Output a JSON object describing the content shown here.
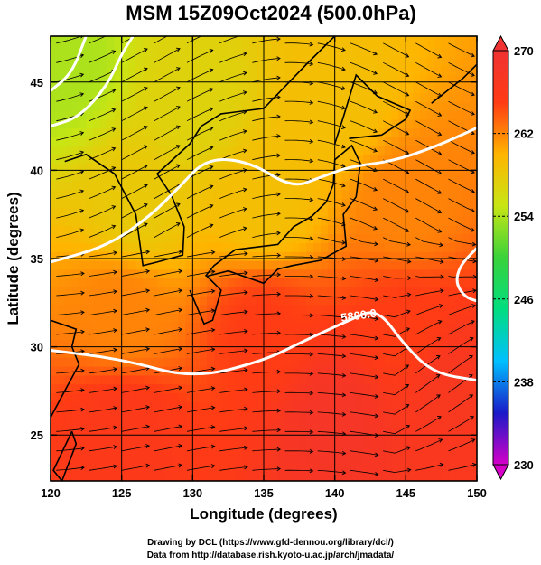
{
  "chart_data": {
    "type": "heatmap",
    "title": "MSM 15Z09Oct2024 (500.0hPa)",
    "xlabel": "Longitude (degrees)",
    "ylabel": "Latitude  (degrees)",
    "xlim": [
      120,
      150
    ],
    "ylim": [
      22.4,
      47.6
    ],
    "x_ticks": [
      120,
      125,
      130,
      135,
      140,
      145,
      150
    ],
    "y_ticks": [
      25,
      30,
      35,
      40,
      45
    ],
    "grid": true,
    "colorbar": {
      "min": 230,
      "max": 270,
      "ticks": [
        230,
        238,
        246,
        254,
        262,
        270
      ],
      "colors": [
        "#d600c8",
        "#1a1ac8",
        "#00c0ff",
        "#00dd80",
        "#3ad23a",
        "#c8e614",
        "#ffb400",
        "#ff3c14",
        "#f03232"
      ]
    },
    "contour_label": "5800.0",
    "temperature_samples_K": [
      {
        "lon": 121,
        "lat": 46,
        "T": 254
      },
      {
        "lon": 130,
        "lat": 44,
        "T": 257
      },
      {
        "lon": 140,
        "lat": 44,
        "T": 259
      },
      {
        "lon": 126,
        "lat": 38,
        "T": 258
      },
      {
        "lon": 135,
        "lat": 38,
        "T": 259
      },
      {
        "lon": 145,
        "lat": 38,
        "T": 262
      },
      {
        "lon": 125,
        "lat": 32,
        "T": 262
      },
      {
        "lon": 135,
        "lat": 31,
        "T": 265
      },
      {
        "lon": 145,
        "lat": 31,
        "T": 265
      },
      {
        "lon": 125,
        "lat": 25,
        "T": 266
      },
      {
        "lon": 140,
        "lat": 26,
        "T": 268
      },
      {
        "lon": 148,
        "lat": 28,
        "T": 267
      }
    ],
    "white_contours": [
      [
        [
          120,
          29.8
        ],
        [
          125,
          29.3
        ],
        [
          130,
          28.2
        ],
        [
          135,
          29.2
        ],
        [
          138,
          30.4
        ],
        [
          141,
          31.5
        ],
        [
          143,
          32.2
        ],
        [
          145,
          30.0
        ],
        [
          147,
          28.5
        ],
        [
          150,
          28.1
        ]
      ],
      [
        [
          120,
          34.8
        ],
        [
          124,
          35.7
        ],
        [
          127,
          37.4
        ],
        [
          129,
          39.0
        ],
        [
          131,
          40.7
        ],
        [
          134,
          40.5
        ],
        [
          137,
          39.0
        ],
        [
          139,
          39.6
        ],
        [
          141,
          40.2
        ],
        [
          144,
          40.5
        ],
        [
          147,
          41.3
        ],
        [
          150,
          42.4
        ]
      ],
      [
        [
          120,
          42.5
        ],
        [
          122,
          43.0
        ],
        [
          124,
          44.8
        ],
        [
          125,
          46.6
        ],
        [
          125.8,
          47.6
        ]
      ],
      [
        [
          120,
          44.5
        ],
        [
          121.5,
          45.5
        ],
        [
          122.5,
          47.6
        ]
      ],
      [
        [
          150,
          35.6
        ],
        [
          148.8,
          34.6
        ],
        [
          148.5,
          33.6
        ],
        [
          149.2,
          32.8
        ],
        [
          150,
          32.6
        ]
      ]
    ],
    "flow_fields": [
      {
        "lon": 120,
        "lat": 45,
        "u": 1.0,
        "v": -0.5
      }
    ]
  },
  "credits": {
    "line1": "Drawing by DCL (https://www.gfd-dennou.org/library/dcl/)",
    "line2": "Data from http://database.rish.kyoto-u.ac.jp/arch/jmadata/"
  }
}
